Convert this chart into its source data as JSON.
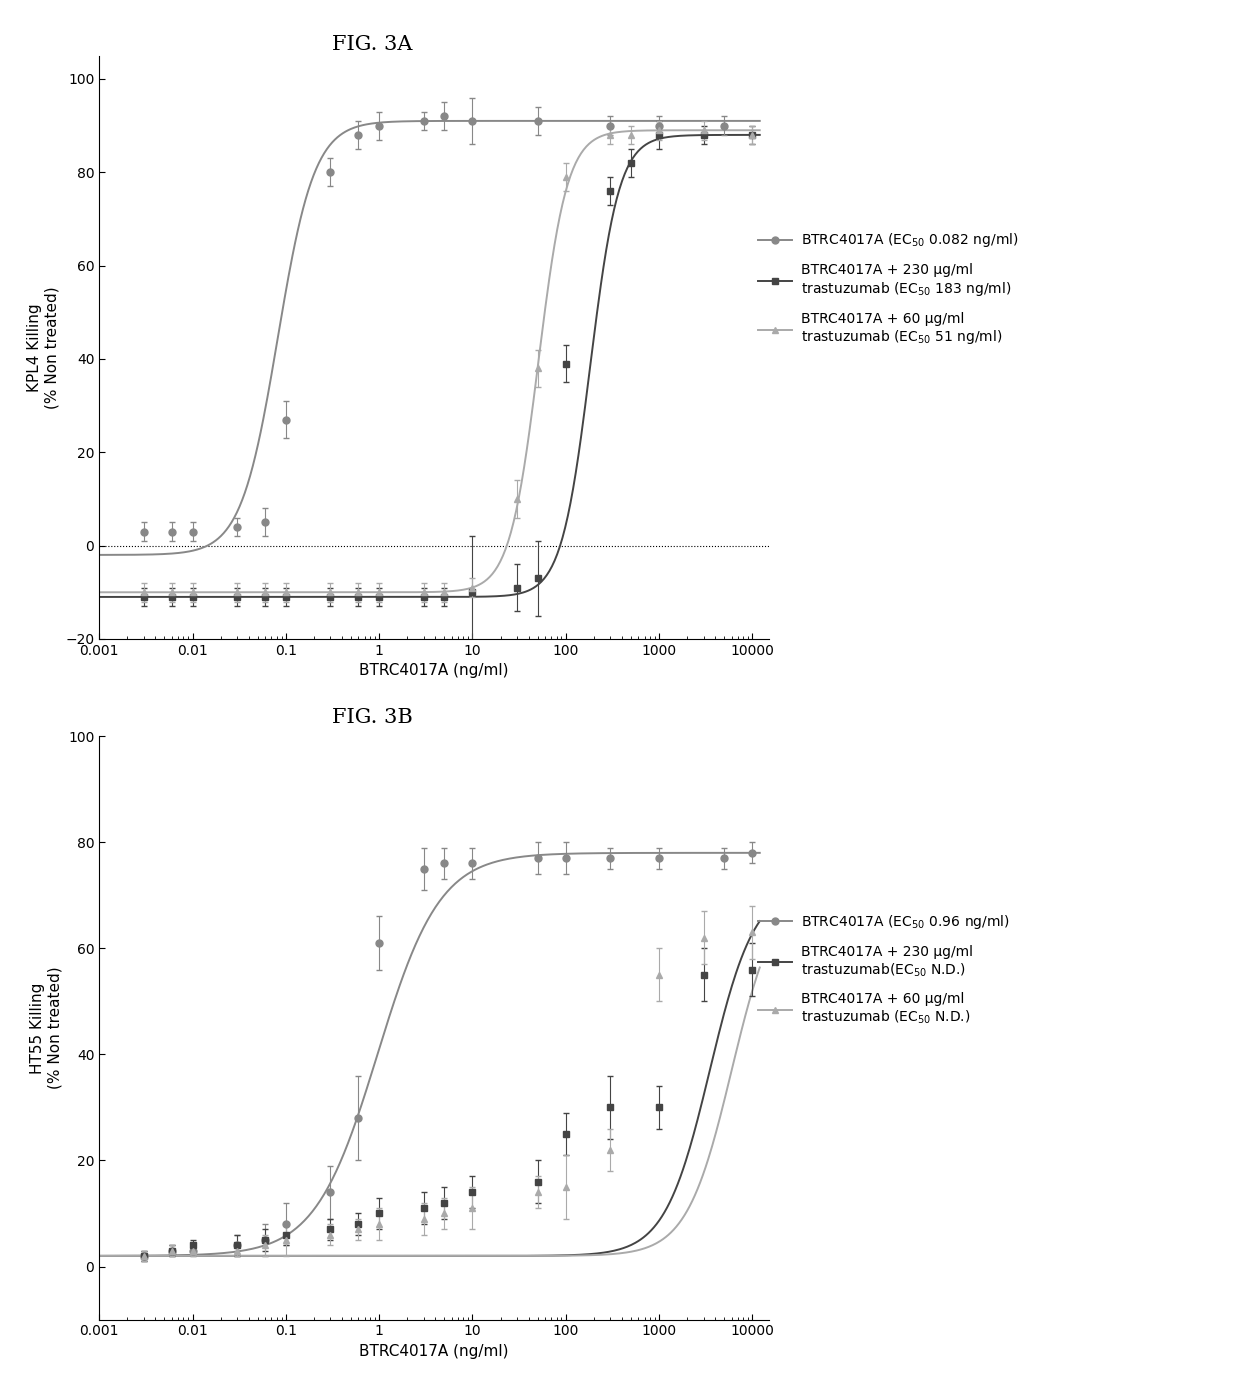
{
  "fig3a_title": "FIG. 3A",
  "fig3b_title": "FIG. 3B",
  "xlabel": "BTRC4017A (ng/ml)",
  "fig3a_ylabel": "KPL4 Killing\n(% Non treated)",
  "fig3b_ylabel": "HT55 Killing\n(% Non treated)",
  "fig3a_ylim": [
    -20,
    105
  ],
  "fig3b_ylim": [
    -10,
    100
  ],
  "fig3a_yticks": [
    -20,
    0,
    20,
    40,
    60,
    80,
    100
  ],
  "fig3b_yticks": [
    0,
    20,
    40,
    60,
    80,
    100
  ],
  "xlim": [
    0.001,
    15000
  ],
  "xtick_labels": [
    "0.001",
    "0.01",
    "0.1",
    "1",
    "10",
    "100",
    "1000",
    "10000"
  ],
  "xtick_values": [
    0.001,
    0.01,
    0.1,
    1,
    10,
    100,
    1000,
    10000
  ],
  "color_c1": "#888888",
  "color_c2": "#444444",
  "color_c3": "#aaaaaa",
  "fig3a_legend": [
    "BTRC4017A (EC$_{50}$ 0.082 ng/ml)",
    "BTRC4017A + 230 µg/ml\ntrastuzumab (EC$_{50}$ 183 ng/ml)",
    "BTRC4017A + 60 µg/ml\ntrastuzumab (EC$_{50}$ 51 ng/ml)"
  ],
  "fig3b_legend": [
    "BTRC4017A (EC$_{50}$ 0.96 ng/ml)",
    "BTRC4017A + 230 µg/ml\ntrastuzumab(EC$_{50}$ N.D.)",
    "BTRC4017A + 60 µg/ml\ntrastuzumab (EC$_{50}$ N.D.)"
  ],
  "fig3a_s1_x": [
    0.003,
    0.006,
    0.01,
    0.03,
    0.06,
    0.1,
    0.3,
    0.6,
    1,
    3,
    5,
    10,
    50,
    300,
    1000,
    5000
  ],
  "fig3a_s1_y": [
    3,
    3,
    3,
    4,
    5,
    27,
    80,
    88,
    90,
    91,
    92,
    91,
    91,
    90,
    90,
    90
  ],
  "fig3a_s1_err": [
    2,
    2,
    2,
    2,
    3,
    4,
    3,
    3,
    3,
    2,
    3,
    5,
    3,
    2,
    2,
    2
  ],
  "fig3a_s2_x": [
    0.003,
    0.006,
    0.01,
    0.03,
    0.06,
    0.1,
    0.3,
    0.6,
    1,
    3,
    5,
    10,
    30,
    50,
    100,
    300,
    500,
    1000,
    3000,
    10000
  ],
  "fig3a_s2_y": [
    -11,
    -11,
    -11,
    -11,
    -11,
    -11,
    -11,
    -11,
    -11,
    -11,
    -11,
    -10,
    -9,
    -7,
    39,
    76,
    82,
    88,
    88,
    88
  ],
  "fig3a_s2_err": [
    2,
    2,
    2,
    2,
    2,
    2,
    2,
    2,
    2,
    2,
    2,
    12,
    5,
    8,
    4,
    3,
    3,
    3,
    2,
    2
  ],
  "fig3a_s3_x": [
    0.003,
    0.006,
    0.01,
    0.03,
    0.06,
    0.1,
    0.3,
    0.6,
    1,
    3,
    5,
    10,
    30,
    50,
    100,
    300,
    500,
    1000,
    3000,
    10000
  ],
  "fig3a_s3_y": [
    -10,
    -10,
    -10,
    -10,
    -10,
    -10,
    -10,
    -10,
    -10,
    -10,
    -10,
    -9,
    10,
    38,
    79,
    88,
    88,
    89,
    89,
    88
  ],
  "fig3a_s3_err": [
    2,
    2,
    2,
    2,
    2,
    2,
    2,
    2,
    2,
    2,
    2,
    2,
    4,
    4,
    3,
    2,
    2,
    2,
    2,
    2
  ],
  "fig3a_ec50_1": 0.082,
  "fig3a_ec50_2": 183,
  "fig3a_ec50_3": 51,
  "fig3b_s1_x": [
    0.003,
    0.006,
    0.01,
    0.03,
    0.06,
    0.1,
    0.3,
    0.6,
    1,
    3,
    5,
    10,
    50,
    100,
    300,
    1000,
    5000,
    10000
  ],
  "fig3b_s1_y": [
    2,
    3,
    3,
    4,
    5,
    8,
    14,
    28,
    61,
    75,
    76,
    76,
    77,
    77,
    77,
    77,
    77,
    78
  ],
  "fig3b_s1_err": [
    1,
    1,
    1,
    2,
    3,
    4,
    5,
    8,
    5,
    4,
    3,
    3,
    3,
    3,
    2,
    2,
    2,
    2
  ],
  "fig3b_s2_x": [
    0.003,
    0.006,
    0.01,
    0.03,
    0.06,
    0.1,
    0.3,
    0.6,
    1,
    3,
    5,
    10,
    50,
    100,
    300,
    1000,
    3000,
    10000
  ],
  "fig3b_s2_y": [
    2,
    3,
    4,
    4,
    5,
    6,
    7,
    8,
    10,
    11,
    12,
    14,
    16,
    25,
    30,
    30,
    55,
    56
  ],
  "fig3b_s2_err": [
    1,
    1,
    1,
    2,
    2,
    2,
    2,
    2,
    3,
    3,
    3,
    3,
    4,
    4,
    6,
    4,
    5,
    5
  ],
  "fig3b_s3_x": [
    0.003,
    0.006,
    0.01,
    0.03,
    0.06,
    0.1,
    0.3,
    0.6,
    1,
    3,
    5,
    10,
    50,
    100,
    300,
    1000,
    3000,
    10000
  ],
  "fig3b_s3_y": [
    2,
    3,
    3,
    3,
    4,
    5,
    6,
    7,
    8,
    9,
    10,
    11,
    14,
    15,
    22,
    55,
    62,
    63
  ],
  "fig3b_s3_err": [
    1,
    1,
    1,
    1,
    2,
    3,
    2,
    2,
    3,
    3,
    3,
    4,
    3,
    6,
    4,
    5,
    5,
    5
  ],
  "fig3b_ec50_1": 0.96,
  "background_color": "#ffffff"
}
